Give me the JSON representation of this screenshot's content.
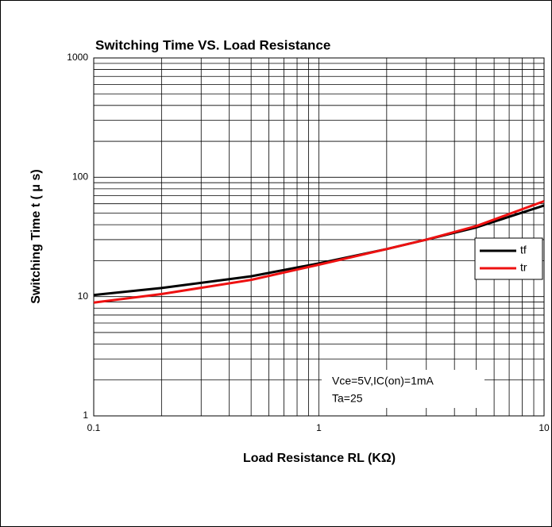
{
  "chart_data": {
    "type": "line",
    "title": "Switching Time VS. Load Resistance",
    "x_label": "Load Resistance RL (KΩ)",
    "y_label": "Switching Time t ( μ s)",
    "x": [
      0.1,
      0.2,
      0.5,
      1,
      2,
      3,
      5,
      10
    ],
    "series": [
      {
        "name": "tf",
        "color": "#000000",
        "values": [
          10.3,
          11.8,
          14.8,
          19,
          25,
          30,
          38,
          58
        ]
      },
      {
        "name": "tr",
        "color": "#ee1111",
        "values": [
          8.9,
          10.5,
          13.8,
          18.5,
          25,
          30,
          39,
          63
        ]
      }
    ],
    "xlim": [
      0.1,
      10
    ],
    "xticks": [
      0.1,
      1,
      10
    ],
    "ylim": [
      1,
      1000
    ],
    "yticks": [
      1,
      10,
      100,
      1000
    ],
    "xscale": "log",
    "yscale": "log",
    "grid": true,
    "legend": "right",
    "annotations": [
      "Vce=5V,IC(on)=1mA",
      "Ta=25"
    ]
  }
}
